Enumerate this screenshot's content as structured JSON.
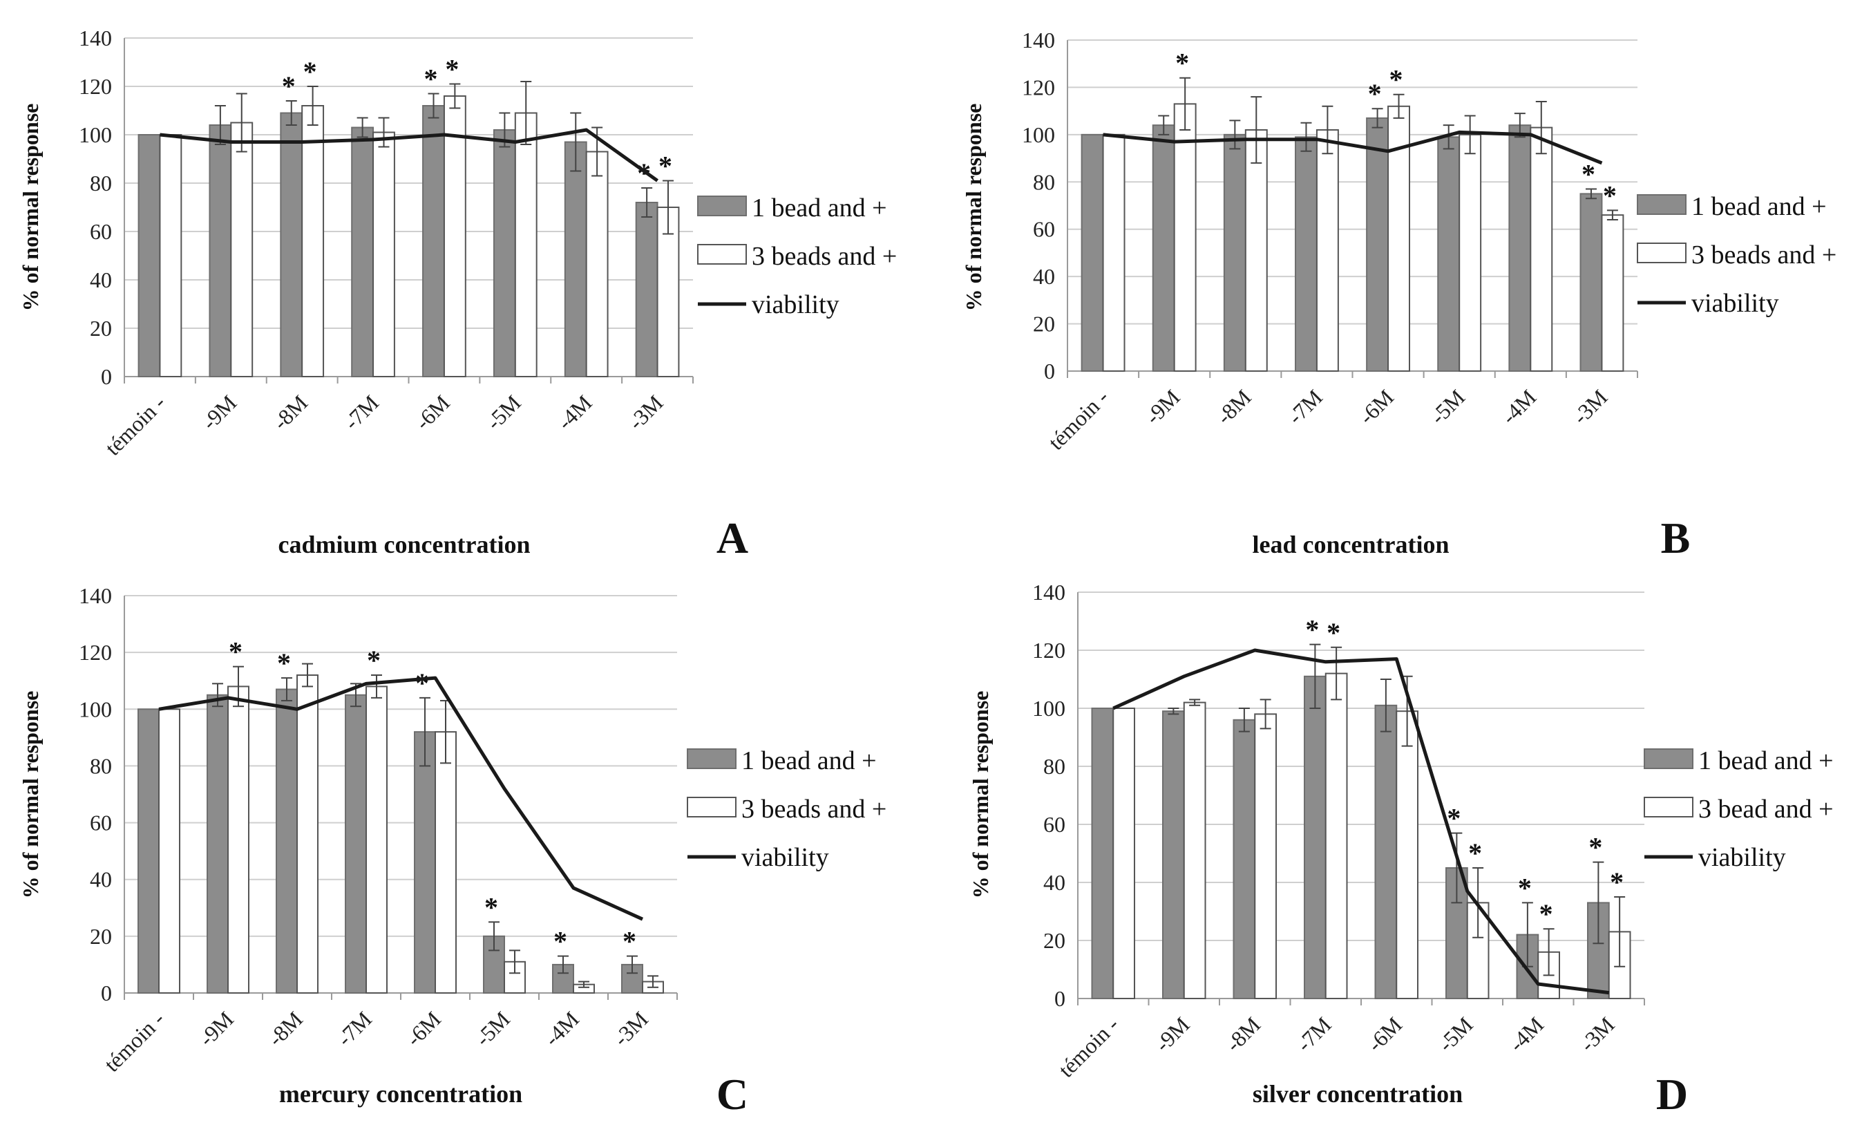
{
  "colors": {
    "series1": "#8c8c8c",
    "series2": "#ffffff",
    "line": "#1a1a1a"
  },
  "chart_data": [
    {
      "type": "bar",
      "panel": "A",
      "xlabel": "cadmium concentration",
      "ylabel": "% of normal response",
      "ylim": [
        0,
        140
      ],
      "yticks": [
        "0",
        "20",
        "40",
        "60",
        "80",
        "100",
        "120",
        "140"
      ],
      "categories": [
        "témoin -",
        "-9M",
        "-8M",
        "-7M",
        "-6M",
        "-5M",
        "-4M",
        "-3M"
      ],
      "legend": [
        "1 bead and +",
        "3 beads and +",
        "viability"
      ],
      "series": [
        {
          "name": "1 bead and +",
          "values": [
            100,
            104,
            109,
            103,
            112,
            102,
            97,
            72
          ],
          "errors": [
            0,
            8,
            5,
            4,
            5,
            7,
            12,
            6
          ],
          "stars": [
            false,
            false,
            true,
            false,
            true,
            false,
            false,
            true
          ]
        },
        {
          "name": "3 beads and +",
          "values": [
            100,
            105,
            112,
            101,
            116,
            109,
            93,
            70
          ],
          "errors": [
            0,
            12,
            8,
            6,
            5,
            13,
            10,
            11
          ],
          "stars": [
            false,
            false,
            true,
            false,
            true,
            false,
            false,
            true
          ]
        }
      ],
      "line": {
        "name": "viability",
        "values": [
          100,
          97,
          97,
          98,
          100,
          97,
          102,
          81
        ]
      }
    },
    {
      "type": "bar",
      "panel": "B",
      "xlabel": "lead concentration",
      "ylabel": "% of normal response",
      "ylim": [
        0,
        140
      ],
      "yticks": [
        "0",
        "20",
        "40",
        "60",
        "80",
        "100",
        "120",
        "140"
      ],
      "categories": [
        "témoin -",
        "-9M",
        "-8M",
        "-7M",
        "-6M",
        "-5M",
        "-4M",
        "-3M"
      ],
      "legend": [
        "1 bead and +",
        "3 beads and +",
        "viability"
      ],
      "series": [
        {
          "name": "1 bead and +",
          "values": [
            100,
            104,
            100,
            99,
            107,
            99,
            104,
            75
          ],
          "errors": [
            0,
            4,
            6,
            6,
            4,
            5,
            5,
            2
          ],
          "stars": [
            false,
            false,
            false,
            false,
            true,
            false,
            false,
            true
          ]
        },
        {
          "name": "3 beads and +",
          "values": [
            100,
            113,
            102,
            102,
            112,
            100,
            103,
            66
          ],
          "errors": [
            0,
            11,
            14,
            10,
            5,
            8,
            11,
            2
          ],
          "stars": [
            false,
            true,
            false,
            false,
            true,
            false,
            false,
            true
          ]
        }
      ],
      "line": {
        "name": "viability",
        "values": [
          100,
          97,
          98,
          98,
          93,
          101,
          100,
          88
        ]
      }
    },
    {
      "type": "bar",
      "panel": "C",
      "xlabel": "mercury concentration",
      "ylabel": "% of normal response",
      "ylim": [
        0,
        140
      ],
      "yticks": [
        "0",
        "20",
        "40",
        "60",
        "80",
        "100",
        "120",
        "140"
      ],
      "categories": [
        "témoin -",
        "-9M",
        "-8M",
        "-7M",
        "-6M",
        "-5M",
        "-4M",
        "-3M"
      ],
      "legend": [
        "1 bead and +",
        "3 beads and +",
        "viability"
      ],
      "series": [
        {
          "name": "1 bead and +",
          "values": [
            100,
            105,
            107,
            105,
            92,
            20,
            10,
            10
          ],
          "errors": [
            0,
            4,
            4,
            4,
            12,
            5,
            3,
            3
          ],
          "stars": [
            false,
            false,
            true,
            false,
            true,
            true,
            true,
            true
          ]
        },
        {
          "name": "3 beads and +",
          "values": [
            100,
            108,
            112,
            108,
            92,
            11,
            3,
            4
          ],
          "errors": [
            0,
            7,
            4,
            4,
            11,
            4,
            1,
            2
          ],
          "stars": [
            false,
            true,
            false,
            true,
            false,
            false,
            false,
            false
          ]
        }
      ],
      "line": {
        "name": "viability",
        "values": [
          100,
          104,
          100,
          109,
          111,
          72,
          37,
          26
        ]
      }
    },
    {
      "type": "bar",
      "panel": "D",
      "xlabel": "silver concentration",
      "ylabel": "% of normal response",
      "ylim": [
        0,
        140
      ],
      "yticks": [
        "0",
        "20",
        "40",
        "60",
        "80",
        "100",
        "120",
        "140"
      ],
      "categories": [
        "témoin -",
        "-9M",
        "-8M",
        "-7M",
        "-6M",
        "-5M",
        "-4M",
        "-3M"
      ],
      "legend": [
        "1 bead and +",
        "3 bead and +",
        "viability"
      ],
      "series": [
        {
          "name": "1 bead and +",
          "values": [
            100,
            99,
            96,
            111,
            101,
            45,
            22,
            33
          ],
          "errors": [
            0,
            1,
            4,
            11,
            9,
            12,
            11,
            14
          ],
          "stars": [
            false,
            false,
            false,
            true,
            false,
            true,
            true,
            true
          ]
        },
        {
          "name": "3 bead and +",
          "values": [
            100,
            102,
            98,
            112,
            99,
            33,
            16,
            23
          ],
          "errors": [
            0,
            1,
            5,
            9,
            12,
            12,
            8,
            12
          ],
          "stars": [
            false,
            false,
            false,
            true,
            false,
            true,
            true,
            true
          ]
        }
      ],
      "line": {
        "name": "viability",
        "values": [
          100,
          111,
          120,
          116,
          117,
          37,
          5,
          2
        ]
      }
    }
  ]
}
